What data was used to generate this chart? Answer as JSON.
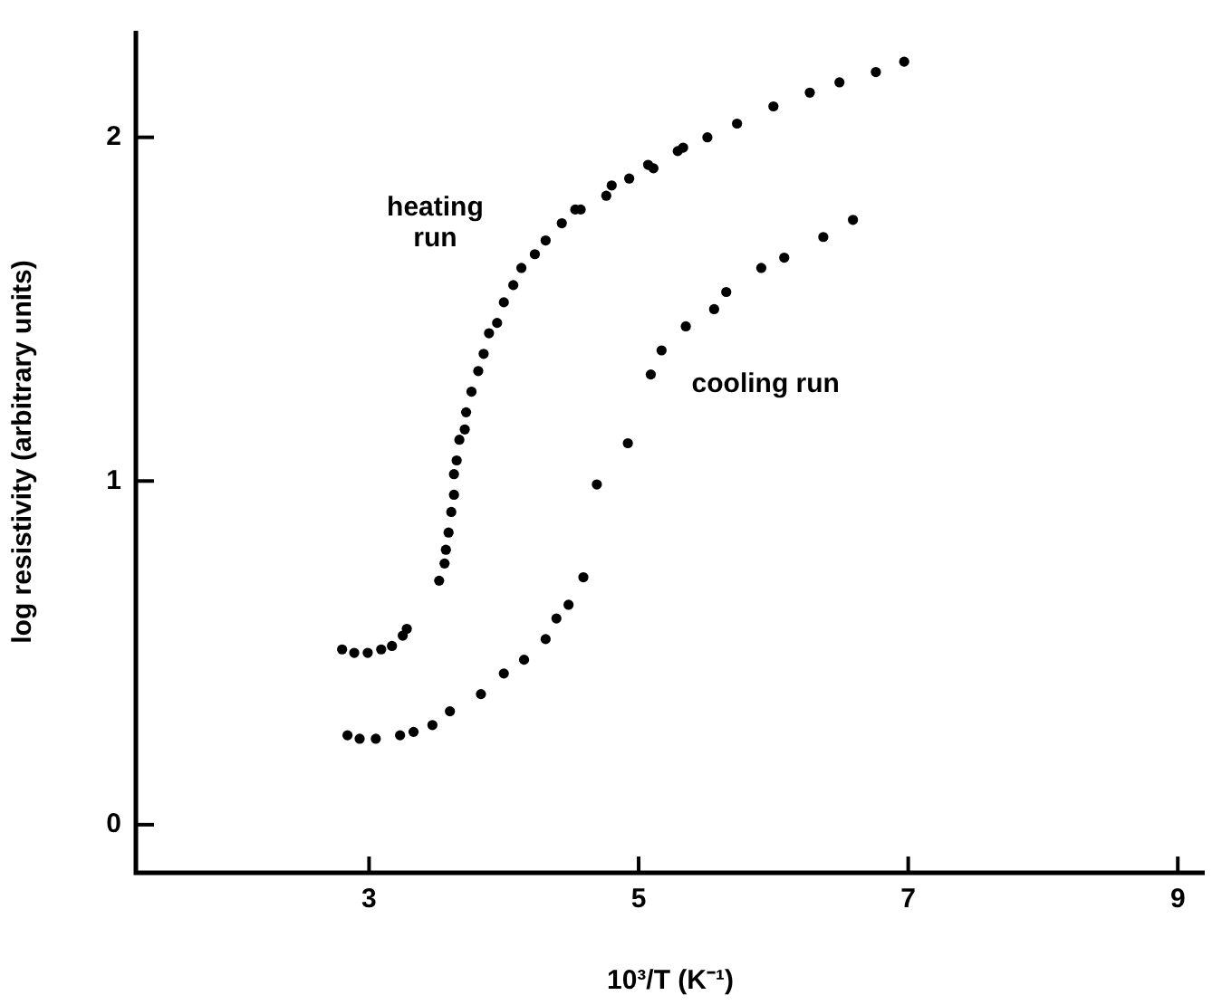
{
  "chart_data": {
    "type": "scatter",
    "xlabel": "10³/T (K⁻¹)",
    "ylabel": "log resistivity (arbitrary units)",
    "xlim": [
      1.27,
      9.2
    ],
    "ylim": [
      -0.14,
      2.31
    ],
    "xticks": [
      3,
      5,
      7,
      9
    ],
    "yticks": [
      0,
      1,
      2
    ],
    "grid": false,
    "legend": false,
    "marker": "circle",
    "series": [
      {
        "name": "heating run",
        "color": "#000000",
        "x": [
          2.8,
          2.89,
          2.99,
          3.09,
          3.17,
          3.25,
          3.28,
          3.52,
          3.56,
          3.57,
          3.59,
          3.61,
          3.63,
          3.63,
          3.65,
          3.67,
          3.71,
          3.72,
          3.76,
          3.81,
          3.85,
          3.89,
          3.95,
          4.0,
          4.07,
          4.13,
          4.23,
          4.31,
          4.43,
          4.53,
          4.57,
          4.76,
          4.8,
          4.93,
          5.07,
          5.11,
          5.29,
          5.33,
          5.51,
          5.73,
          6.0,
          6.27,
          6.49,
          6.76,
          6.97
        ],
        "values": [
          0.51,
          0.5,
          0.5,
          0.51,
          0.52,
          0.55,
          0.57,
          0.71,
          0.76,
          0.8,
          0.85,
          0.91,
          0.96,
          1.02,
          1.06,
          1.12,
          1.15,
          1.2,
          1.26,
          1.32,
          1.37,
          1.43,
          1.46,
          1.52,
          1.57,
          1.62,
          1.66,
          1.7,
          1.75,
          1.79,
          1.79,
          1.83,
          1.86,
          1.88,
          1.92,
          1.91,
          1.96,
          1.97,
          2.0,
          2.04,
          2.09,
          2.13,
          2.16,
          2.19,
          2.22
        ]
      },
      {
        "name": "cooling run",
        "color": "#000000",
        "x": [
          2.84,
          2.93,
          3.05,
          3.23,
          3.33,
          3.47,
          3.6,
          3.83,
          4.0,
          4.15,
          4.31,
          4.39,
          4.48,
          4.59,
          4.69,
          4.92,
          5.09,
          5.17,
          5.35,
          5.56,
          5.65,
          5.91,
          6.08,
          6.37,
          6.59
        ],
        "values": [
          0.26,
          0.25,
          0.25,
          0.26,
          0.27,
          0.29,
          0.33,
          0.38,
          0.44,
          0.48,
          0.54,
          0.6,
          0.64,
          0.72,
          0.99,
          1.11,
          1.31,
          1.38,
          1.45,
          1.5,
          1.55,
          1.62,
          1.65,
          1.71,
          1.76
        ]
      }
    ]
  }
}
